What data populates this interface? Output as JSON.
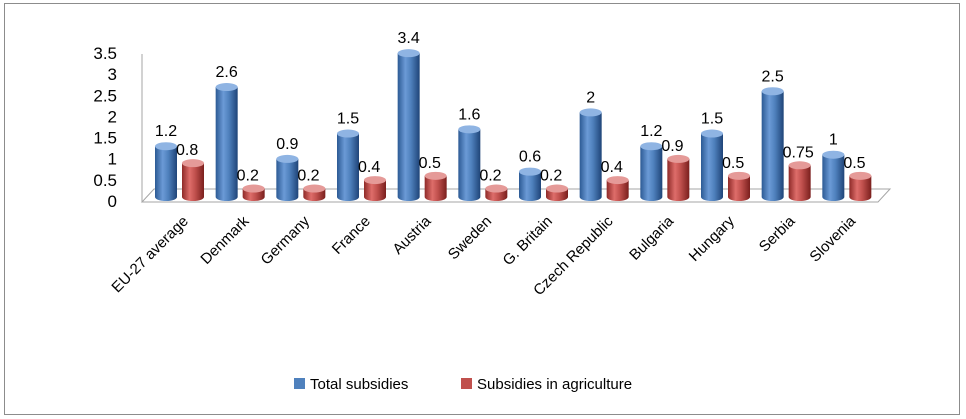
{
  "chart_data": {
    "type": "bar",
    "title": "",
    "xlabel": "",
    "ylabel": "",
    "categories": [
      "EU-27 average",
      "Denmark",
      "Germany",
      "France",
      "Austria",
      "Sweden",
      "G. Britain",
      "Czech Republic",
      "Bulgaria",
      "Hungary",
      "Serbia",
      "Slovenia"
    ],
    "series": [
      {
        "name": "Total subsidies",
        "values": [
          1.2,
          2.6,
          0.9,
          1.5,
          3.4,
          1.6,
          0.6,
          2,
          1.2,
          1.5,
          2.5,
          1
        ],
        "labels": [
          "1.2",
          "2.6",
          "0.9",
          "1.5",
          "3.4",
          "1.6",
          "0.6",
          "2",
          "1.2",
          "1.5",
          "2.5",
          "1"
        ],
        "color": "#4f81bd"
      },
      {
        "name": "Subsidies in agriculture",
        "values": [
          0.8,
          0.2,
          0.2,
          0.4,
          0.5,
          0.2,
          0.2,
          0.4,
          0.9,
          0.5,
          0.75,
          0.5
        ],
        "labels": [
          "0.8",
          "0.2",
          "0.2",
          "0.4",
          "0.5",
          "0.2",
          "0.2",
          "0.4",
          "0.9",
          "0.5",
          "0.75",
          "0.5"
        ],
        "color": "#c0504d"
      }
    ],
    "ylim": [
      0,
      3.5
    ],
    "yticks": [
      "0",
      "0.5",
      "1",
      "1.5",
      "2",
      "2.5",
      "3",
      "3.5"
    ],
    "grid": false,
    "legend": "bottom",
    "style": "3d-cylinder"
  }
}
